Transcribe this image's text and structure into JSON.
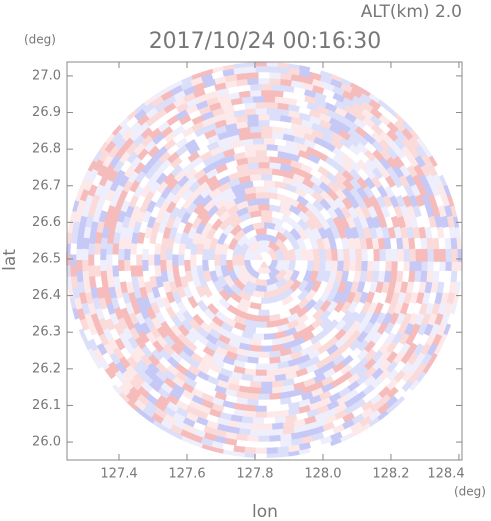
{
  "chart_data": {
    "type": "radar-ppi",
    "title": "2017/10/24 00:16:30",
    "annotation": "ALT(km) 2.0",
    "x_label": "lon",
    "y_label": "lat",
    "x_unit": "(deg)",
    "y_unit": "(deg)",
    "xlim": [
      127.247,
      128.409
    ],
    "ylim": [
      25.951,
      27.038
    ],
    "xticks": [
      127.4,
      127.6,
      127.8,
      {
        "value": 128,
        "label": "128.0"
      },
      128.2,
      128.4
    ],
    "yticks": [
      {
        "value": 26,
        "label": "26.0"
      },
      26.1,
      26.2,
      26.3,
      26.4,
      26.5,
      26.6,
      26.7,
      26.8,
      26.9,
      {
        "value": 27,
        "label": "27.0"
      }
    ]
  }
}
